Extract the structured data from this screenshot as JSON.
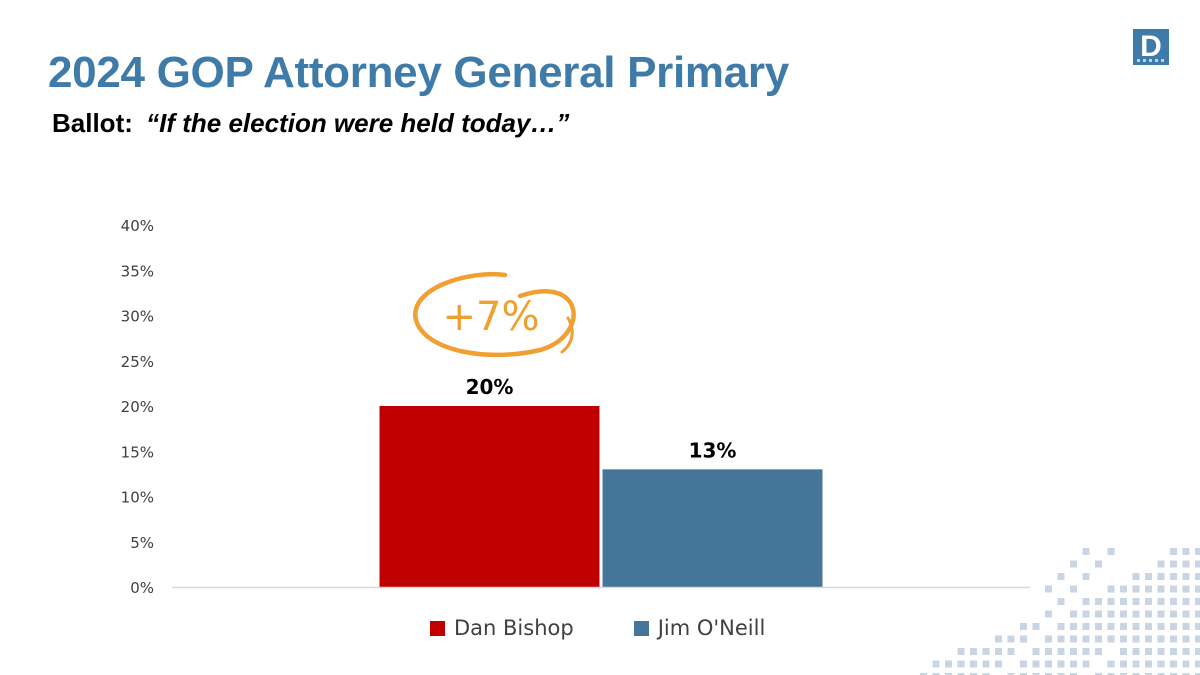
{
  "header": {
    "title": "2024 GOP Attorney General Primary",
    "subtitle_label": "Ballot:",
    "subtitle_quote": "“If the election were held today…”",
    "logo_letter": "D"
  },
  "annotation": {
    "text": "+7%",
    "color": "#F0A030"
  },
  "chart_data": {
    "type": "bar",
    "categories": [
      ""
    ],
    "series": [
      {
        "name": "Dan Bishop",
        "values": [
          20
        ],
        "color": "#C00000",
        "data_label": "20%"
      },
      {
        "name": "Jim O'Neill",
        "values": [
          13
        ],
        "color": "#45769A",
        "data_label": "13%"
      }
    ],
    "ylim": [
      0,
      40
    ],
    "yticks": [
      0,
      5,
      10,
      15,
      20,
      25,
      30,
      35,
      40
    ],
    "ytick_labels": [
      "0%",
      "5%",
      "10%",
      "15%",
      "20%",
      "25%",
      "30%",
      "35%",
      "40%"
    ],
    "grid": false,
    "legend": "bottom",
    "title": "",
    "xlabel": "",
    "ylabel": ""
  },
  "colors": {
    "title": "#3F7BA8",
    "brand": "#3F7BA8",
    "pattern": "#C9D5E2"
  }
}
